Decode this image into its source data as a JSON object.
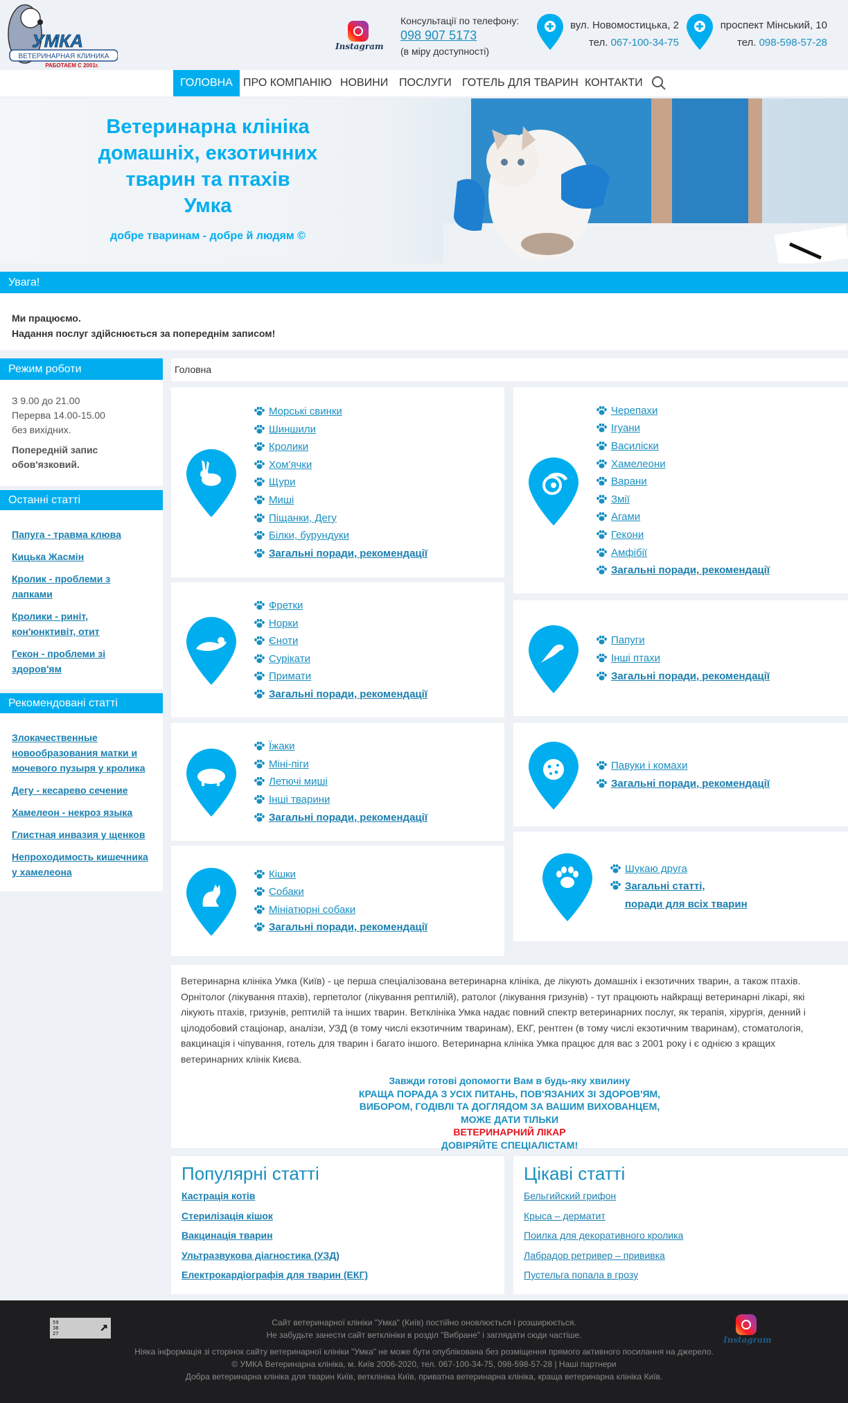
{
  "header": {
    "logo": {
      "name": "УМКА",
      "subtitle": "ВЕТЕРИНАРНАЯ КЛИНИКА",
      "since": "РАБОТАЕМ С 2001г."
    },
    "instagram_label": "Instagram",
    "consult_label": "Консультації по телефону:",
    "consult_phone": "098 907 5173",
    "consult_note": "(в міру доступності)",
    "branches": [
      {
        "address": "вул. Новомостицька, 2",
        "tel_label": "тел.",
        "phone": "067-100-34-75"
      },
      {
        "address": "проспект Мінський, 10",
        "tel_label": "тел.",
        "phone": "098-598-57-28"
      }
    ]
  },
  "nav": {
    "items": [
      "ГОЛОВНА",
      "ПРО КОМПАНІЮ",
      "НОВИНИ",
      "ПОСЛУГИ",
      "ГОТЕЛЬ ДЛЯ ТВАРИН",
      "КОНТАКТИ"
    ],
    "active": 0
  },
  "hero": {
    "title_lines": [
      "Ветеринарна клініка",
      "домашніх, екзотичних",
      "тварин та птахів",
      "Умка"
    ],
    "slogan": "добре тваринам - добре й людям ©"
  },
  "notice": {
    "title": "Увага!",
    "line1": "Ми працюємо.",
    "line2": "Надання послуг здійснюється за попереднім записом!"
  },
  "sidebar": {
    "hours": {
      "title": "Режим роботи",
      "lines": [
        "З 9.00 до 21.00",
        "Перерва 14.00-15.00",
        "без вихідних."
      ],
      "note": "Попередній запис обов'язковий."
    },
    "latest": {
      "title": "Останні статті",
      "items": [
        "Папуга - травма клюва",
        "Кицька Жасмін",
        "Кролик - проблеми з лапками",
        "Кролики - риніт, кон'юнктивіт, отит",
        "Гекон - проблеми зі здоров'ям"
      ]
    },
    "recommended": {
      "title": "Рекомендовані статті",
      "items": [
        "Злокачественные новообразования матки и мочевого пузыря у кролика",
        "Дегу - кесарево сечение",
        "Хамелеон - некроз языка",
        "Глистная инвазия у щенков",
        "Непроходимость кишечника у хамелеона"
      ]
    }
  },
  "breadcrumb": "Головна",
  "categories": {
    "left": [
      {
        "icon": "rabbit-icon",
        "items": [
          "Морські свинки",
          "Шиншили",
          "Кролики",
          "Хом'ячки",
          "Щури",
          "Миші",
          "Піщанки, Дегу",
          "Білки, бурундуки"
        ],
        "general": "Загальні поради, рекомендації"
      },
      {
        "icon": "ferret-icon",
        "items": [
          "Фретки",
          "Норки",
          "Єноти",
          "Сурікати",
          "Примати"
        ],
        "general": "Загальні поради, рекомендації"
      },
      {
        "icon": "pig-icon",
        "items": [
          "Їжаки",
          "Міні-піги",
          "Летючі миші",
          "Інші тварини"
        ],
        "general": "Загальні поради, рекомендації"
      },
      {
        "icon": "cat-icon",
        "items": [
          "Кішки",
          "Собаки",
          "Мініатюрні собаки"
        ],
        "general": "Загальні поради, рекомендації"
      }
    ],
    "right": [
      {
        "icon": "chameleon-icon",
        "items": [
          "Черепахи",
          "Ігуани",
          "Василіски",
          "Хамелеони",
          "Варани",
          "Змії",
          "Агами",
          "Гекони",
          "Амфібії"
        ],
        "general": "Загальні поради, рекомендації"
      },
      {
        "icon": "parrot-icon",
        "items": [
          "Папуги",
          "Інші птахи"
        ],
        "general": "Загальні поради, рекомендації"
      },
      {
        "icon": "ladybug-icon",
        "items": [
          "Павуки і комахи"
        ],
        "general": "Загальні поради, рекомендації"
      },
      {
        "icon": "paw-print-icon",
        "items": [
          "Шукаю друга"
        ],
        "general": "Загальні статті,\nпоради для всіх тварин"
      }
    ]
  },
  "about": {
    "text": "Ветеринарна клініка Умка (Київ) - це перша спеціалізована ветеринарна клініка, де лікують домашніх і екзотичних тварин, а також птахів. Орнітолог (лікування птахів), герпетолог (лікування рептилій), ратолог (лікування гризунів) - тут працюють найкращі ветеринарні лікарі, які лікують птахів, гризунів, рептилій та інших тварин. Ветклініка Умка надає повний спектр ветеринарних послуг, як терапія, хірургія, денний і цілодобовий стаціонар, аналізи, УЗД (в тому числі екзотичним тваринам), ЕКГ, рентген (в тому числі екзотичним тваринам), стоматологія, вакцинація і чіпування, готель для тварин і багато іншого. Ветеринарна клініка Умка працює для вас з 2001 року і є однією з кращих ветеринарних клінік Києва.",
    "slogan": [
      "Завжди готові допомогти Вам в будь-яку хвилину",
      "КРАЩА ПОРАДА З УСІХ ПИТАНЬ, ПОВ'ЯЗАНИХ ЗІ ЗДОРОВ'ЯМ,",
      "ВИБОРОМ, ГОДІВЛІ ТА ДОГЛЯДОМ ЗА ВАШИМ ВИХОВАНЦЕМ,",
      "МОЖЕ ДАТИ ТІЛЬКИ",
      "ВЕТЕРИНАРНИЙ ЛІКАР",
      "ДОВІРЯЙТЕ СПЕЦІАЛІСТАМ!"
    ],
    "highlight_color": "#e0141e"
  },
  "popular": {
    "title": "Популярні статті",
    "items": [
      "Кастрація котів",
      "Стерилізація кішок",
      "Вакцинація тварин",
      "Ультразвукова діагностика (УЗД)",
      "Електрокардіографія для тварин (ЕКГ)"
    ]
  },
  "interesting": {
    "title": "Цікаві статті",
    "items": [
      "Бельгийский грифон",
      "Крыса – дерматит",
      "Поилка для декоративного кролика",
      "Лабрадор ретривер – прививка",
      "Пустельга попала в грозу"
    ]
  },
  "footer": {
    "counter": [
      "59",
      "38",
      "27"
    ],
    "line1": "Сайт ветеринарної клініки \"Умка\" (Київ) постійно оновлюється і розширюється.",
    "line2": "Не забудьте занести сайт ветклініки в розділ \"Вибране\" і заглядати сюди частіше.",
    "line3": "Ніяка інформація зі сторінок сайту ветеринарної клініки \"Умка\" не може бути опублікована без розміщення прямого активного посилання на джерело.",
    "copyright": "© УМКА Ветеринарна клініка, м. Київ 2006-2020",
    "phones": ", тел. 067-100-34-75, 098-598-57-28 | ",
    "partners": "Наші партнери",
    "line5": "Добра ветеринарна клініка для тварин Київ, ветклініка Київ, приватна ветеринарна клініка, краща ветеринарна клініка Київ.",
    "instagram_label": "Instagram"
  },
  "colors": {
    "accent": "#00aeef",
    "link": "#1a7fb0",
    "footer_bg": "#1e1e20"
  }
}
